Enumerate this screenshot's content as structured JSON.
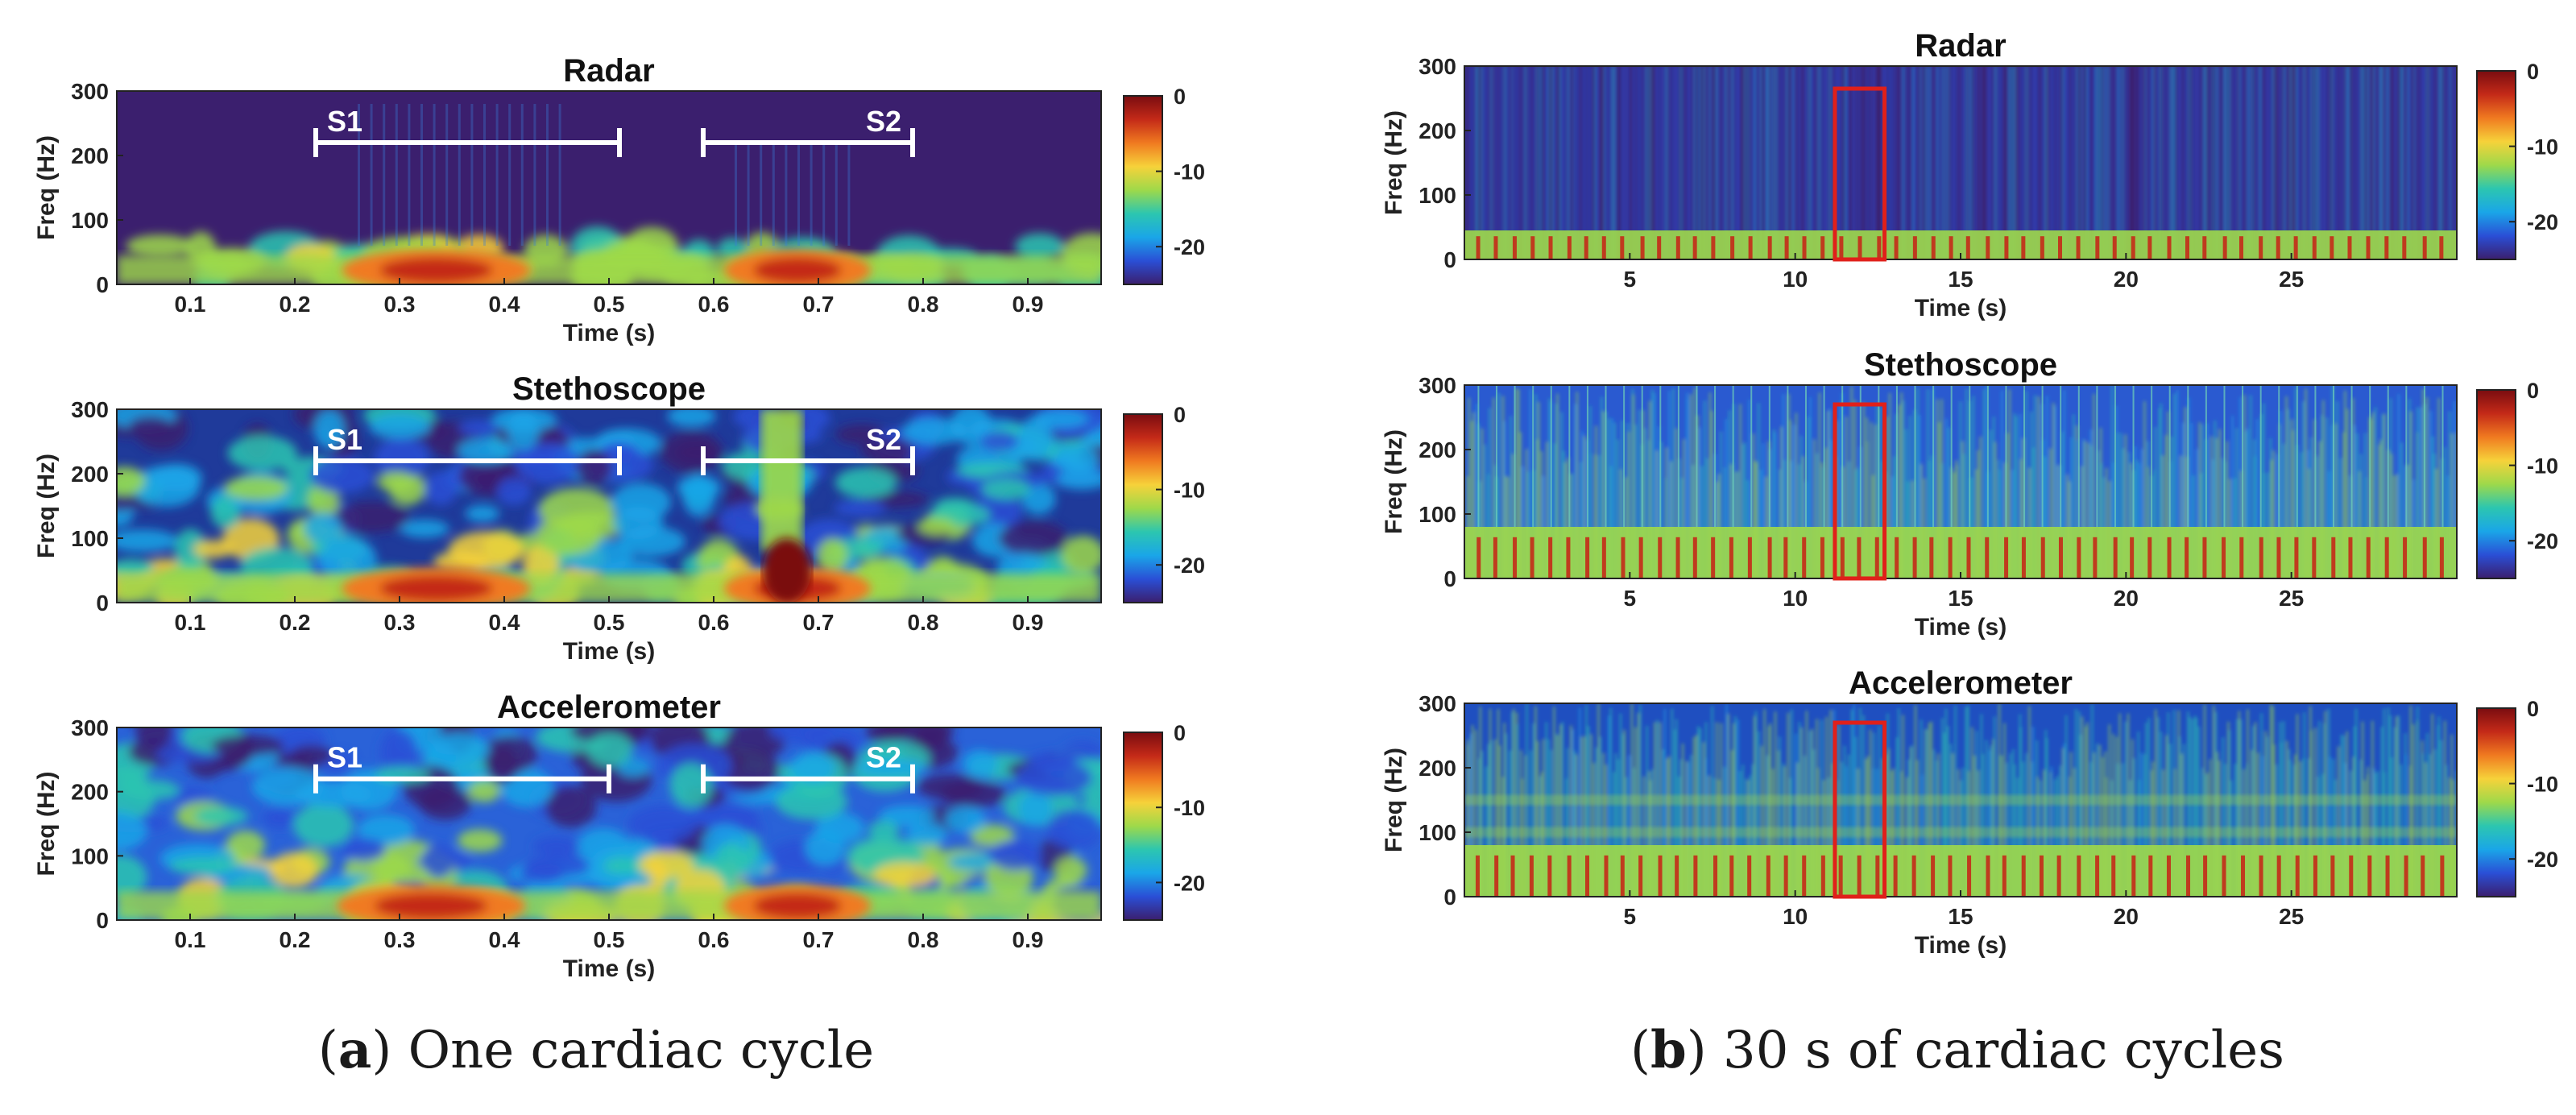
{
  "colorbar": {
    "colormap": [
      "#3b1f6e",
      "#2a4fd6",
      "#1aa6e8",
      "#2cc6b0",
      "#9ed94a",
      "#f6d23a",
      "#f07a20",
      "#c42a18",
      "#7a0c10"
    ],
    "range": [
      -25,
      0
    ],
    "ticks": [
      "0",
      "-10",
      "-20"
    ]
  },
  "captions": {
    "a": {
      "letter": "a",
      "text": " One cardiac cycle"
    },
    "b": {
      "letter": "b",
      "text": " 30 s of cardiac cycles"
    }
  },
  "chart_data": [
    {
      "panel": "a",
      "type": "heatmap",
      "title": "Radar",
      "xlabel": "Time (s)",
      "ylabel": "Freq (Hz)",
      "xlim": [
        0.03,
        0.97
      ],
      "ylim": [
        0,
        300
      ],
      "xticks": [
        "0.1",
        "0.2",
        "0.3",
        "0.4",
        "0.5",
        "0.6",
        "0.7",
        "0.8",
        "0.9"
      ],
      "yticks": [
        "0",
        "100",
        "200",
        "300"
      ],
      "annotations": [
        {
          "label": "S1",
          "x_start": 0.22,
          "x_end": 0.51,
          "freq": 220
        },
        {
          "label": "S2",
          "x_start": 0.59,
          "x_end": 0.79,
          "freq": 220
        }
      ],
      "clim": [
        -25,
        0
      ]
    },
    {
      "panel": "a",
      "type": "heatmap",
      "title": "Stethoscope",
      "xlabel": "Time (s)",
      "ylabel": "Freq (Hz)",
      "xlim": [
        0.03,
        0.97
      ],
      "ylim": [
        0,
        300
      ],
      "xticks": [
        "0.1",
        "0.2",
        "0.3",
        "0.4",
        "0.5",
        "0.6",
        "0.7",
        "0.8",
        "0.9"
      ],
      "yticks": [
        "0",
        "100",
        "200",
        "300"
      ],
      "annotations": [
        {
          "label": "S1",
          "x_start": 0.22,
          "x_end": 0.51,
          "freq": 220
        },
        {
          "label": "S2",
          "x_start": 0.59,
          "x_end": 0.79,
          "freq": 220
        }
      ],
      "clim": [
        -25,
        0
      ]
    },
    {
      "panel": "a",
      "type": "heatmap",
      "title": "Accelerometer",
      "xlabel": "Time (s)",
      "ylabel": "Freq (Hz)",
      "xlim": [
        0.03,
        0.97
      ],
      "ylim": [
        0,
        300
      ],
      "xticks": [
        "0.1",
        "0.2",
        "0.3",
        "0.4",
        "0.5",
        "0.6",
        "0.7",
        "0.8",
        "0.9"
      ],
      "yticks": [
        "0",
        "100",
        "200",
        "300"
      ],
      "annotations": [
        {
          "label": "S1",
          "x_start": 0.22,
          "x_end": 0.5,
          "freq": 220
        },
        {
          "label": "S2",
          "x_start": 0.59,
          "x_end": 0.79,
          "freq": 220
        }
      ],
      "clim": [
        -25,
        0
      ]
    },
    {
      "panel": "b",
      "type": "heatmap",
      "title": "Radar",
      "xlabel": "Time (s)",
      "ylabel": "Freq (Hz)",
      "xlim": [
        0,
        30
      ],
      "ylim": [
        0,
        300
      ],
      "xticks": [
        "5",
        "10",
        "15",
        "20",
        "25"
      ],
      "yticks": [
        "0",
        "100",
        "200",
        "300"
      ],
      "highlight": {
        "x_start": 11.2,
        "x_end": 12.7,
        "freq_top": 265
      },
      "clim": [
        -25,
        0
      ]
    },
    {
      "panel": "b",
      "type": "heatmap",
      "title": "Stethoscope",
      "xlabel": "Time (s)",
      "ylabel": "Freq (Hz)",
      "xlim": [
        0,
        30
      ],
      "ylim": [
        0,
        300
      ],
      "xticks": [
        "5",
        "10",
        "15",
        "20",
        "25"
      ],
      "yticks": [
        "0",
        "100",
        "200",
        "300"
      ],
      "highlight": {
        "x_start": 11.2,
        "x_end": 12.7,
        "freq_top": 270
      },
      "clim": [
        -25,
        0
      ]
    },
    {
      "panel": "b",
      "type": "heatmap",
      "title": "Accelerometer",
      "xlabel": "Time (s)",
      "ylabel": "Freq (Hz)",
      "xlim": [
        0,
        30
      ],
      "ylim": [
        0,
        300
      ],
      "xticks": [
        "5",
        "10",
        "15",
        "20",
        "25"
      ],
      "yticks": [
        "0",
        "100",
        "200",
        "300"
      ],
      "highlight": {
        "x_start": 11.2,
        "x_end": 12.7,
        "freq_top": 270
      },
      "clim": [
        -25,
        0
      ]
    }
  ]
}
